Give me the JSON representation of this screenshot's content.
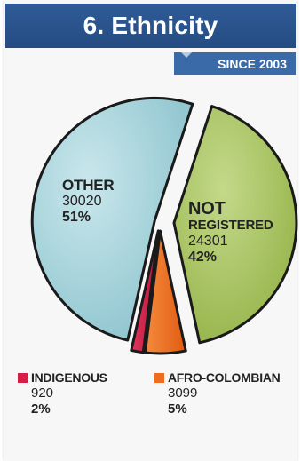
{
  "title": "6. Ethnicity",
  "since": "SINCE 2003",
  "colors": {
    "other": "#9fcfd8",
    "not_registered": "#a6c25a",
    "indigenous": "#d61f45",
    "afro_colombian": "#ef6b1f",
    "title_bg": "#2a528b"
  },
  "chart_data": {
    "type": "pie",
    "title": "",
    "slices": [
      {
        "label": "OTHER",
        "value": 30020,
        "percent": "51%"
      },
      {
        "label": "NOT REGISTERED",
        "value": 24301,
        "percent": "42%"
      },
      {
        "label": "INDIGENOUS",
        "value": 920,
        "percent": "2%"
      },
      {
        "label": "AFRO-COLOMBIAN",
        "value": 3099,
        "percent": "5%"
      }
    ],
    "display": {
      "other": {
        "name": "OTHER",
        "value": "30020",
        "percent": "51%"
      },
      "not_registered": {
        "name_line1": "NOT",
        "name_line2": "REGISTERED",
        "value": "24301",
        "percent": "42%"
      },
      "indigenous": {
        "name": "INDIGENOUS",
        "value": "920",
        "percent": "2%"
      },
      "afro_colombian": {
        "name": "AFRO-COLOMBIAN",
        "value": "3099",
        "percent": "5%"
      }
    }
  }
}
